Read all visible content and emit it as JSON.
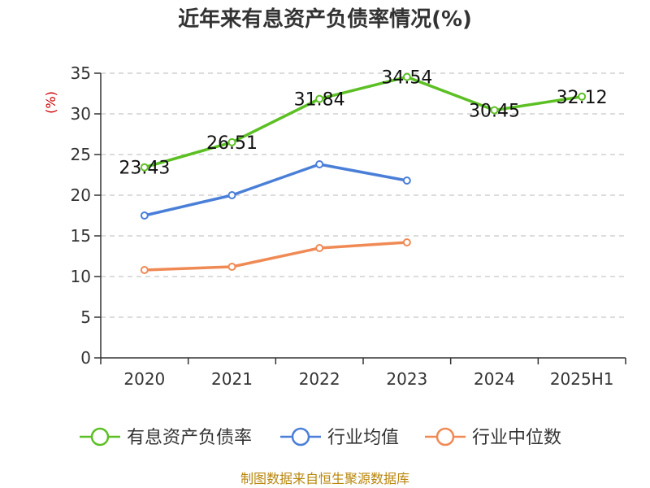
{
  "chart_data": {
    "type": "line",
    "title": "近年来有息资产负债率情况(%)",
    "ylabel": "(%)",
    "xlabel": "",
    "categories": [
      "2020",
      "2021",
      "2022",
      "2023",
      "2024",
      "2025H1"
    ],
    "ylim": [
      0,
      35
    ],
    "yticks": [
      0,
      5,
      10,
      15,
      20,
      25,
      30,
      35
    ],
    "grid": "horizontal-dashed",
    "legend_position": "bottom",
    "series": [
      {
        "name": "有息资产负债率",
        "color": "#5cc024",
        "values": [
          23.43,
          26.51,
          31.84,
          34.54,
          30.45,
          32.12
        ],
        "labels": [
          "23.43",
          "26.51",
          "31.84",
          "34.54",
          "30.45",
          "32.12"
        ]
      },
      {
        "name": "行业均值",
        "color": "#4a7fd8",
        "values": [
          17.5,
          20.0,
          23.8,
          21.8,
          null,
          null
        ]
      },
      {
        "name": "行业中位数",
        "color": "#f08a55",
        "values": [
          10.8,
          11.2,
          13.5,
          14.2,
          null,
          null
        ]
      }
    ]
  },
  "source": "制图数据来自恒生聚源数据库"
}
